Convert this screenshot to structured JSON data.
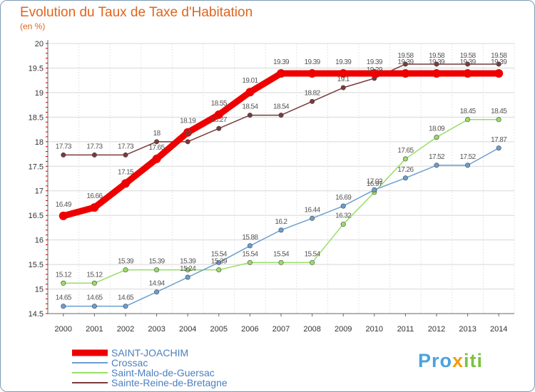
{
  "title": "Evolution du Taux de Taxe d'Habitation",
  "subtitle": "(en %)",
  "logo": "Proxiti",
  "chart_data": {
    "type": "line",
    "x": [
      "2000",
      "2001",
      "2002",
      "2003",
      "2004",
      "2005",
      "2006",
      "2007",
      "2008",
      "2009",
      "2010",
      "2011",
      "2012",
      "2013",
      "2014"
    ],
    "y_ticks": [
      "14.5",
      "15",
      "15.5",
      "16",
      "16.5",
      "17",
      "17.5",
      "18",
      "18.5",
      "19",
      "19.5",
      "20"
    ],
    "ylim": [
      14.5,
      20
    ],
    "grid": true,
    "legend_position": "bottom-left",
    "series": [
      {
        "name": "SAINT-JOACHIM",
        "color": "#ee0000",
        "values": [
          16.49,
          16.66,
          17.15,
          17.65,
          18.19,
          18.55,
          19.01,
          19.39,
          19.39,
          19.39,
          19.39,
          19.39,
          19.39,
          19.39,
          19.39
        ],
        "labels": [
          "16.49",
          "16.66",
          "17.15",
          "17.65",
          "18.19",
          "18.55",
          "19.01",
          "19.39",
          "19.39",
          "19.39",
          "19.39",
          "19.39",
          "19.39",
          "19.39",
          "19.39"
        ]
      },
      {
        "name": "Crossac",
        "color": "#6a9fd0",
        "values": [
          14.65,
          14.65,
          14.65,
          14.94,
          15.24,
          15.54,
          15.88,
          16.2,
          16.44,
          16.69,
          17.02,
          17.26,
          17.52,
          17.52,
          17.87
        ],
        "labels": [
          "14.65",
          "14.65",
          "14.65",
          "14.94",
          "15.24",
          "15.54",
          "15.88",
          "16.2",
          "16.44",
          "16.69",
          "17.02",
          "17.26",
          "17.52",
          "17.52",
          "17.87"
        ]
      },
      {
        "name": "Saint-Malo-de-Guersac",
        "color": "#99dd66",
        "values": [
          15.12,
          15.12,
          15.39,
          15.39,
          15.39,
          15.39,
          15.54,
          15.54,
          15.54,
          16.32,
          16.97,
          17.65,
          18.09,
          18.45,
          18.45
        ],
        "labels": [
          "15.12",
          "15.12",
          "15.39",
          "15.39",
          "15.39",
          "15.39",
          "15.54",
          "15.54",
          "15.54",
          "16.32",
          "16.97",
          "17.65",
          "18.09",
          "18.45",
          "18.45"
        ]
      },
      {
        "name": "Sainte-Reine-de-Bretagne",
        "color": "#7a3a3a",
        "values": [
          17.73,
          17.73,
          17.73,
          18,
          18,
          18.27,
          18.54,
          18.54,
          18.82,
          19.1,
          19.29,
          19.58,
          19.58,
          19.58,
          19.58
        ],
        "labels": [
          "17.73",
          "17.73",
          "17.73",
          "18",
          "18",
          "18.27",
          "18.54",
          "18.54",
          "18.82",
          "19.1",
          "19.29",
          "19.58",
          "19.58",
          "19.58",
          "19.58"
        ]
      }
    ]
  }
}
